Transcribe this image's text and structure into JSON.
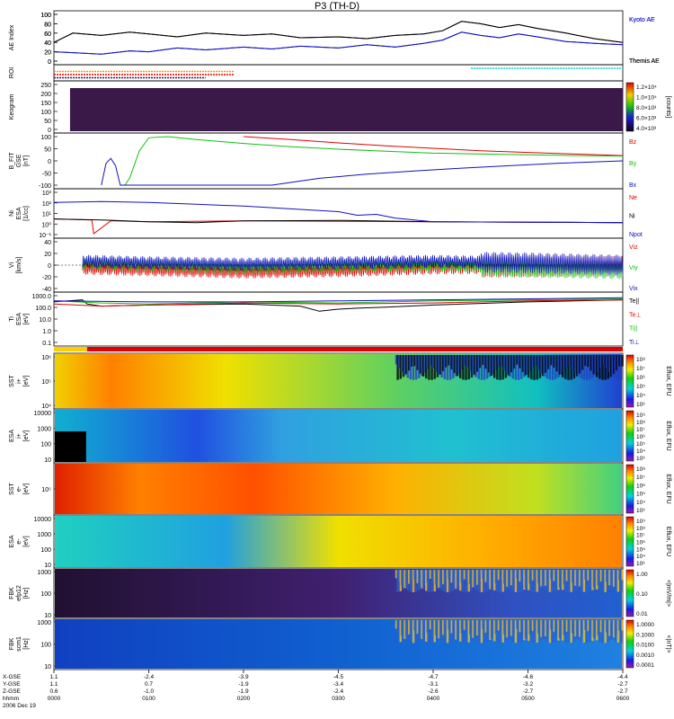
{
  "title": "P3 (TH-D)",
  "colors": {
    "black": "#000000",
    "blue": "#1010c0",
    "red": "#e00000",
    "green": "#10c010",
    "orange": "#ff8c00",
    "cyan": "#00d0d0",
    "purple": "#3a1048"
  },
  "chart_data": [
    {
      "type": "line",
      "panel": "ae",
      "ylabel": "AE Index",
      "yticks": [
        "100",
        "80",
        "60",
        "40",
        "20",
        "0"
      ],
      "ylim": [
        0,
        100
      ],
      "series": [
        {
          "name": "Kyoto AE",
          "color": "#1010c0",
          "x": [
            0,
            0.2,
            0.5,
            0.8,
            1.0,
            1.3,
            1.6,
            2.0,
            2.3,
            2.6,
            3.0,
            3.3,
            3.6,
            3.9,
            4.1,
            4.3,
            4.5,
            4.7,
            4.9,
            5.1,
            5.4,
            5.7,
            6.0
          ],
          "values": [
            20,
            18,
            15,
            22,
            20,
            28,
            24,
            30,
            26,
            32,
            28,
            35,
            30,
            38,
            45,
            62,
            55,
            50,
            58,
            52,
            42,
            38,
            35
          ]
        },
        {
          "name": "Themis AE",
          "color": "#000000",
          "x": [
            0,
            0.2,
            0.5,
            0.8,
            1.0,
            1.3,
            1.6,
            2.0,
            2.3,
            2.6,
            3.0,
            3.3,
            3.6,
            3.9,
            4.1,
            4.3,
            4.5,
            4.7,
            4.9,
            5.1,
            5.4,
            5.7,
            6.0
          ],
          "values": [
            40,
            60,
            55,
            62,
            58,
            52,
            60,
            55,
            58,
            50,
            52,
            48,
            55,
            58,
            65,
            85,
            80,
            72,
            78,
            70,
            60,
            48,
            40
          ]
        }
      ]
    },
    {
      "type": "line",
      "panel": "roi",
      "ylabel": "ROI",
      "series": [
        {
          "name": "",
          "color": "#ff8c00",
          "x": [
            0,
            1.9
          ],
          "values": [
            1,
            1
          ]
        },
        {
          "name": "",
          "color": "#e00000",
          "x": [
            0,
            1.9
          ],
          "values": [
            2,
            2
          ]
        },
        {
          "name": "",
          "color": "#3a1048",
          "x": [
            0,
            1.6
          ],
          "values": [
            3,
            3
          ]
        },
        {
          "name": "",
          "color": "#00d0d0",
          "x": [
            4.4,
            6.0
          ],
          "values": [
            0,
            0
          ]
        }
      ]
    },
    {
      "type": "heatmap",
      "panel": "keogram",
      "ylabel": "Keogram",
      "yticks": [
        "250",
        "200",
        "150",
        "100",
        "50",
        "0"
      ],
      "colorbar": {
        "label": "[counts]",
        "ticks": [
          "1.2×10⁴",
          "1.0×10⁴",
          "8.0×10³",
          "6.0×10³",
          "4.0×10³"
        ]
      }
    },
    {
      "type": "line",
      "panel": "bfield",
      "ylabel": "B_FIT",
      "ylabel2": "GSE",
      "units": "[nT]",
      "yticks": [
        "100",
        "50",
        "0",
        "-50",
        "-100"
      ],
      "ylim": [
        -100,
        100
      ],
      "series": [
        {
          "name": "Bz",
          "color": "#e00000",
          "x": [
            2.0,
            2.5,
            3.0,
            3.5,
            4.0,
            4.5,
            5.0,
            5.5,
            6.0
          ],
          "values": [
            100,
            88,
            74,
            62,
            52,
            42,
            35,
            28,
            22
          ]
        },
        {
          "name": "By",
          "color": "#10c010",
          "x": [
            0.75,
            0.8,
            0.9,
            1.0,
            1.2,
            1.5,
            2.0,
            2.5,
            3.0,
            3.5,
            4.0,
            4.5,
            5.0,
            5.5,
            6.0
          ],
          "values": [
            -100,
            -70,
            40,
            95,
            100,
            88,
            72,
            58,
            48,
            40,
            32,
            28,
            25,
            22,
            20
          ]
        },
        {
          "name": "Bx",
          "color": "#1010c0",
          "x": [
            0.5,
            0.55,
            0.6,
            0.65,
            0.7,
            2.3,
            2.8,
            3.3,
            3.8,
            4.3,
            4.8,
            5.3,
            6.0
          ],
          "values": [
            -100,
            -10,
            10,
            -20,
            -100,
            -100,
            -72,
            -55,
            -42,
            -30,
            -20,
            -10,
            0
          ]
        }
      ]
    },
    {
      "type": "line",
      "panel": "density",
      "ylabel": "Ni",
      "ylabel2": "ESA",
      "units": "[1/cc]",
      "yticks": [
        "10³",
        "10²",
        "10¹",
        "10⁰",
        "10⁻¹"
      ],
      "series": [
        {
          "name": "Ne",
          "color": "#e00000",
          "x": [
            0,
            0.4,
            0.42,
            0.6,
            1.0,
            2.0,
            3.0,
            4.0,
            5.0,
            6.0
          ],
          "values": [
            0.4,
            0.3,
            -1.2,
            0.2,
            0.1,
            0.2,
            0.15,
            0.1,
            0.05,
            0.0
          ]
        },
        {
          "name": "Ni",
          "color": "#000000",
          "x": [
            0,
            0.5,
            1.0,
            1.5,
            2.0,
            3.0,
            4.0,
            5.0,
            6.0
          ],
          "values": [
            0.4,
            0.3,
            0.1,
            0.0,
            0.2,
            0.25,
            0.1,
            0.05,
            0.0
          ]
        },
        {
          "name": "Npot",
          "color": "#1010c0",
          "x": [
            0,
            0.5,
            1.0,
            1.5,
            2.0,
            2.5,
            3.0,
            3.2,
            3.4,
            3.6,
            3.8,
            4.0,
            5.0,
            6.0
          ],
          "values": [
            2.2,
            2.3,
            2.2,
            2.0,
            1.8,
            1.5,
            1.2,
            0.8,
            0.9,
            0.5,
            0.3,
            0.1,
            0.05,
            0.0
          ]
        }
      ]
    },
    {
      "type": "line",
      "panel": "velocity",
      "ylabel": "Vi",
      "units": "[km/s]",
      "yticks": [
        "40",
        "20",
        "0",
        "-20",
        "-40"
      ],
      "ylim": [
        -50,
        50
      ],
      "series": [
        {
          "name": "Viz",
          "color": "#e00000",
          "x": [
            0,
            1,
            2,
            3,
            4,
            5,
            6
          ],
          "values": [
            -5,
            -10,
            -15,
            -12,
            -6,
            -4,
            -2
          ]
        },
        {
          "name": "Viy",
          "color": "#10c010",
          "x": [
            0,
            1,
            2,
            3,
            4,
            5,
            6
          ],
          "values": [
            5,
            0,
            -5,
            -2,
            0,
            -5,
            -8
          ]
        },
        {
          "name": "Vix",
          "color": "#1010c0",
          "x": [
            0,
            1,
            2,
            3,
            4,
            5,
            6
          ],
          "values": [
            10,
            5,
            2,
            5,
            8,
            5,
            0
          ]
        }
      ]
    },
    {
      "type": "line",
      "panel": "temperature",
      "ylabel": "Ti",
      "ylabel2": "ESA",
      "units": "[eV]",
      "yticks": [
        "1000.0",
        "100.0",
        "10.0",
        "1.0",
        "0.1"
      ],
      "series": [
        {
          "name": "Te||",
          "color": "#000000",
          "x": [
            0,
            0.3,
            0.35,
            0.5,
            1.0,
            2.0,
            2.6,
            2.8,
            3.0,
            3.2,
            3.5,
            4.0,
            5.0,
            6.0
          ],
          "values": [
            2.9,
            3.1,
            2.7,
            2.5,
            2.6,
            2.7,
            2.5,
            2.0,
            2.2,
            2.3,
            2.4,
            2.6,
            2.9,
            3.1
          ]
        },
        {
          "name": "Te⊥",
          "color": "#e00000",
          "x": [
            0,
            0.5,
            1.0,
            2.0,
            3.0,
            4.0,
            5.0,
            6.0
          ],
          "values": [
            2.7,
            2.5,
            2.6,
            2.8,
            2.7,
            2.8,
            3.0,
            3.1
          ]
        },
        {
          "name": "Ti||",
          "color": "#10c010",
          "x": [
            0,
            0.5,
            1.0,
            2.0,
            3.0,
            4.0,
            5.0,
            6.0
          ],
          "values": [
            3.0,
            2.8,
            2.7,
            2.9,
            2.8,
            3.0,
            3.1,
            3.2
          ]
        },
        {
          "name": "Ti⊥",
          "color": "#1010c0",
          "x": [
            0,
            1,
            2,
            3,
            4,
            5,
            6
          ],
          "values": [
            3.0,
            2.9,
            2.9,
            3.0,
            3.1,
            3.2,
            3.3
          ]
        }
      ]
    },
    {
      "type": "heatmap",
      "panel": "sst-ion",
      "ylabel": "SST",
      "ylabel2": "i+",
      "units": "[eV]",
      "yticks": [
        "10⁶",
        "10⁵",
        "10⁴"
      ],
      "colorbar": {
        "label": "Eflux, EFU",
        "ticks": [
          "10⁸",
          "10⁷",
          "10⁶",
          "10⁵",
          "10⁴",
          "10³"
        ]
      }
    },
    {
      "type": "heatmap",
      "panel": "esa-ion",
      "ylabel": "ESA",
      "ylabel2": "i+",
      "units": "[eV]",
      "yticks": [
        "10000",
        "1000",
        "100",
        "10"
      ],
      "colorbar": {
        "label": "Eflux, EFU",
        "ticks": [
          "10⁹",
          "10⁸",
          "10⁷",
          "10⁶",
          "10⁵",
          "10⁴",
          "10³"
        ]
      }
    },
    {
      "type": "heatmap",
      "panel": "sst-e",
      "ylabel": "SST",
      "ylabel2": "e-",
      "units": "[eV]",
      "yticks": [
        "10⁵"
      ],
      "colorbar": {
        "label": "Eflux, EFU",
        "ticks": [
          "10⁸",
          "10⁷",
          "10⁶",
          "10⁵",
          "10⁴",
          "10³"
        ]
      }
    },
    {
      "type": "heatmap",
      "panel": "esa-e",
      "ylabel": "ESA",
      "ylabel2": "e-",
      "units": "[eV]",
      "yticks": [
        "10000",
        "1000",
        "100",
        "10"
      ],
      "colorbar": {
        "label": "Eflux, EFU",
        "ticks": [
          "10⁹",
          "10⁸",
          "10⁷",
          "10⁶",
          "10⁵",
          "10⁴",
          "10³"
        ]
      }
    },
    {
      "type": "heatmap",
      "panel": "fbk-e",
      "ylabel": "FBK",
      "ylabel2": "efp12",
      "units": "[Hz]",
      "yticks": [
        "1000",
        "100",
        "10"
      ],
      "colorbar": {
        "label": "<|mV/m|>",
        "ticks": [
          "1.00",
          "0.10",
          "0.01"
        ]
      }
    },
    {
      "type": "heatmap",
      "panel": "fbk-b",
      "ylabel": "FBK",
      "ylabel2": "scm1",
      "units": "[Hz]",
      "yticks": [
        "1000",
        "100",
        "10"
      ],
      "colorbar": {
        "label": "<|nT|>",
        "ticks": [
          "1.0000",
          "0.1000",
          "0.0100",
          "0.0010",
          "0.0001"
        ]
      }
    }
  ],
  "legends": {
    "ae": [
      "Kyoto AE",
      "Themis AE"
    ],
    "bfield": [
      "Bz",
      "By",
      "Bx"
    ],
    "density": [
      "Ne",
      "Ni",
      "Npot"
    ],
    "velocity": [
      "Viz",
      "Viy",
      "Vix"
    ],
    "temperature": [
      "Te||",
      "Te⊥",
      "Ti||",
      "Ti⊥"
    ]
  },
  "time_axis": {
    "row_labels": [
      "X-GSE",
      "Y-GSE",
      "Z-GSE",
      "hhmm",
      "2006 Dec 19"
    ],
    "columns": [
      {
        "x": "1.1",
        "y": "1.1",
        "z": "0.6",
        "t": "0000"
      },
      {
        "x": "-2.4",
        "y": "0.7",
        "z": "-1.0",
        "t": "0100"
      },
      {
        "x": "-3.9",
        "y": "-1.9",
        "z": "-1.9",
        "t": "0200"
      },
      {
        "x": "-4.5",
        "y": "-3.4",
        "z": "-2.4",
        "t": "0300"
      },
      {
        "x": "-4.7",
        "y": "-3.1",
        "z": "-2.6",
        "t": "0400"
      },
      {
        "x": "-4.6",
        "y": "-3.2",
        "z": "-2.7",
        "t": "0500"
      },
      {
        "x": "-4.4",
        "y": "-2.7",
        "z": "-2.7",
        "t": "0600"
      }
    ]
  }
}
